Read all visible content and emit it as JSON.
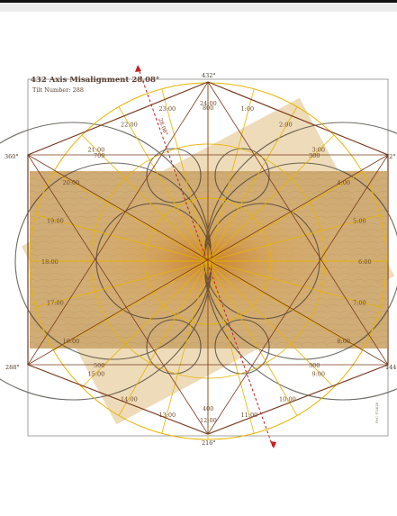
{
  "title": "432 Axis Misalignment 28.08°",
  "subtitle": "Tilt Number: 288",
  "tilt_label": "28.08°",
  "credit": "PeC ©2020",
  "corner_labels": {
    "top": "432°",
    "left": "360°",
    "right": "72°",
    "bottom_left": "288°",
    "bottom_right": "144°",
    "bottom": "216°"
  },
  "hour_labels": [
    {
      "text": "24:00"
    },
    {
      "text": "1:00"
    },
    {
      "text": "2:00"
    },
    {
      "text": "3:00"
    },
    {
      "text": "4:00"
    },
    {
      "text": "5:00"
    },
    {
      "text": "6:00"
    },
    {
      "text": "7:00"
    },
    {
      "text": "8:00"
    },
    {
      "text": "9:00"
    },
    {
      "text": "10:00"
    },
    {
      "text": "11:00"
    },
    {
      "text": "12:00"
    },
    {
      "text": "13:00"
    },
    {
      "text": "14:00"
    },
    {
      "text": "15:00"
    },
    {
      "text": "16:00"
    },
    {
      "text": "17:00"
    },
    {
      "text": "18:00"
    },
    {
      "text": "19:00"
    },
    {
      "text": "20:00"
    },
    {
      "text": "21:00"
    },
    {
      "text": "22:00"
    },
    {
      "text": "23:00"
    }
  ],
  "ring_labels": [
    "800",
    "700",
    "300",
    "500",
    "300",
    "400"
  ],
  "colors": {
    "frame": "#8a8a8a",
    "hexagon": "#7a3a1e",
    "circle": "#e8b400",
    "tilt_axis": "#c81e1e",
    "image_fill": "#c9a46a"
  }
}
